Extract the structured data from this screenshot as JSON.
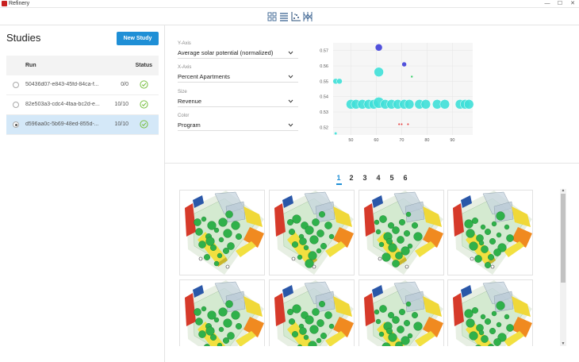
{
  "app": {
    "title": "Refinery"
  },
  "window_controls": {
    "minimize": "—",
    "maximize": "☐",
    "close": "✕"
  },
  "toolbar": {
    "views": [
      {
        "name": "grid-view",
        "icon": "grid-icon"
      },
      {
        "name": "list-view",
        "icon": "list-icon"
      },
      {
        "name": "scatter-view",
        "icon": "scatter-plot-icon"
      },
      {
        "name": "parallel-view",
        "icon": "parallel-coordinates-icon"
      }
    ]
  },
  "sidebar": {
    "title": "Studies",
    "new_study_label": "New Study",
    "columns": {
      "run": "Run",
      "status": "Status"
    },
    "runs": [
      {
        "id": "50436d07-e843-45fd-84ca-f...",
        "count": "0/0",
        "status": "complete",
        "selected": false
      },
      {
        "id": "82e503a3-cdc4-4faa-bc2d-e...",
        "count": "10/10",
        "status": "complete",
        "selected": false
      },
      {
        "id": "d596aa0c-5b69-48ed-855d-...",
        "count": "10/10",
        "status": "complete",
        "selected": true
      }
    ]
  },
  "controls": {
    "y_axis": {
      "label": "Y-Axis",
      "value": "Average solar potential (normalized)"
    },
    "x_axis": {
      "label": "X-Axis",
      "value": "Percent Apartments"
    },
    "size": {
      "label": "Size",
      "value": "Revenue"
    },
    "color": {
      "label": "Color",
      "value": "Program"
    }
  },
  "chart_data": {
    "type": "scatter",
    "title": "",
    "xlabel": "",
    "ylabel": "",
    "xlim": [
      43,
      98
    ],
    "ylim": [
      0.515,
      0.575
    ],
    "x_ticks": [
      "50",
      "60",
      "70",
      "80",
      "90"
    ],
    "y_ticks": [
      "0.57",
      "0.56",
      "0.55",
      "0.54",
      "0.53",
      "0.52"
    ],
    "x_tick_values": [
      50,
      60,
      70,
      80,
      90
    ],
    "y_tick_values": [
      0.57,
      0.56,
      0.55,
      0.54,
      0.53,
      0.52
    ],
    "colors": {
      "cyan": "#3fe0d8",
      "blue": "#3f3fd8",
      "red": "#e03030",
      "green": "#33cc66"
    },
    "points": [
      {
        "x": 44,
        "y": 0.55,
        "r": 3.5,
        "color": "#3fe0d8"
      },
      {
        "x": 45.5,
        "y": 0.55,
        "r": 3.5,
        "color": "#3fe0d8"
      },
      {
        "x": 44,
        "y": 0.516,
        "r": 1.8,
        "color": "#3fe0d8"
      },
      {
        "x": 61,
        "y": 0.572,
        "r": 4.5,
        "color": "#3f3fd8"
      },
      {
        "x": 71,
        "y": 0.561,
        "r": 3,
        "color": "#3f3fd8"
      },
      {
        "x": 61,
        "y": 0.556,
        "r": 6,
        "color": "#3fe0d8"
      },
      {
        "x": 74,
        "y": 0.553,
        "r": 1.5,
        "color": "#33cc66"
      },
      {
        "x": 50,
        "y": 0.535,
        "r": 6,
        "color": "#3fe0d8"
      },
      {
        "x": 52,
        "y": 0.535,
        "r": 6,
        "color": "#3fe0d8"
      },
      {
        "x": 54.5,
        "y": 0.535,
        "r": 6,
        "color": "#3fe0d8"
      },
      {
        "x": 57,
        "y": 0.535,
        "r": 6,
        "color": "#3fe0d8"
      },
      {
        "x": 59,
        "y": 0.535,
        "r": 6,
        "color": "#3fe0d8"
      },
      {
        "x": 61,
        "y": 0.536,
        "r": 7,
        "color": "#3fe0d8"
      },
      {
        "x": 63.5,
        "y": 0.535,
        "r": 6,
        "color": "#3fe0d8"
      },
      {
        "x": 66,
        "y": 0.535,
        "r": 6,
        "color": "#3fe0d8"
      },
      {
        "x": 68.5,
        "y": 0.535,
        "r": 6,
        "color": "#3fe0d8"
      },
      {
        "x": 71,
        "y": 0.535,
        "r": 6,
        "color": "#3fe0d8"
      },
      {
        "x": 73,
        "y": 0.535,
        "r": 6,
        "color": "#3fe0d8"
      },
      {
        "x": 77,
        "y": 0.535,
        "r": 6,
        "color": "#3fe0d8"
      },
      {
        "x": 79.5,
        "y": 0.535,
        "r": 6,
        "color": "#3fe0d8"
      },
      {
        "x": 84,
        "y": 0.535,
        "r": 6,
        "color": "#3fe0d8"
      },
      {
        "x": 87,
        "y": 0.535,
        "r": 6,
        "color": "#3fe0d8"
      },
      {
        "x": 93,
        "y": 0.535,
        "r": 6,
        "color": "#3fe0d8"
      },
      {
        "x": 95,
        "y": 0.535,
        "r": 6,
        "color": "#3fe0d8"
      },
      {
        "x": 96.5,
        "y": 0.535,
        "r": 6,
        "color": "#3fe0d8"
      },
      {
        "x": 69,
        "y": 0.522,
        "r": 1.3,
        "color": "#e03030"
      },
      {
        "x": 70,
        "y": 0.522,
        "r": 1.3,
        "color": "#e03030"
      },
      {
        "x": 72.5,
        "y": 0.522,
        "r": 1.3,
        "color": "#e03030"
      }
    ]
  },
  "pagination": {
    "pages": [
      "1",
      "2",
      "3",
      "4",
      "5",
      "6"
    ],
    "active": 0
  },
  "gallery": {
    "count": 8,
    "variants": [
      0,
      1,
      2,
      3,
      0,
      1,
      2,
      3
    ]
  }
}
